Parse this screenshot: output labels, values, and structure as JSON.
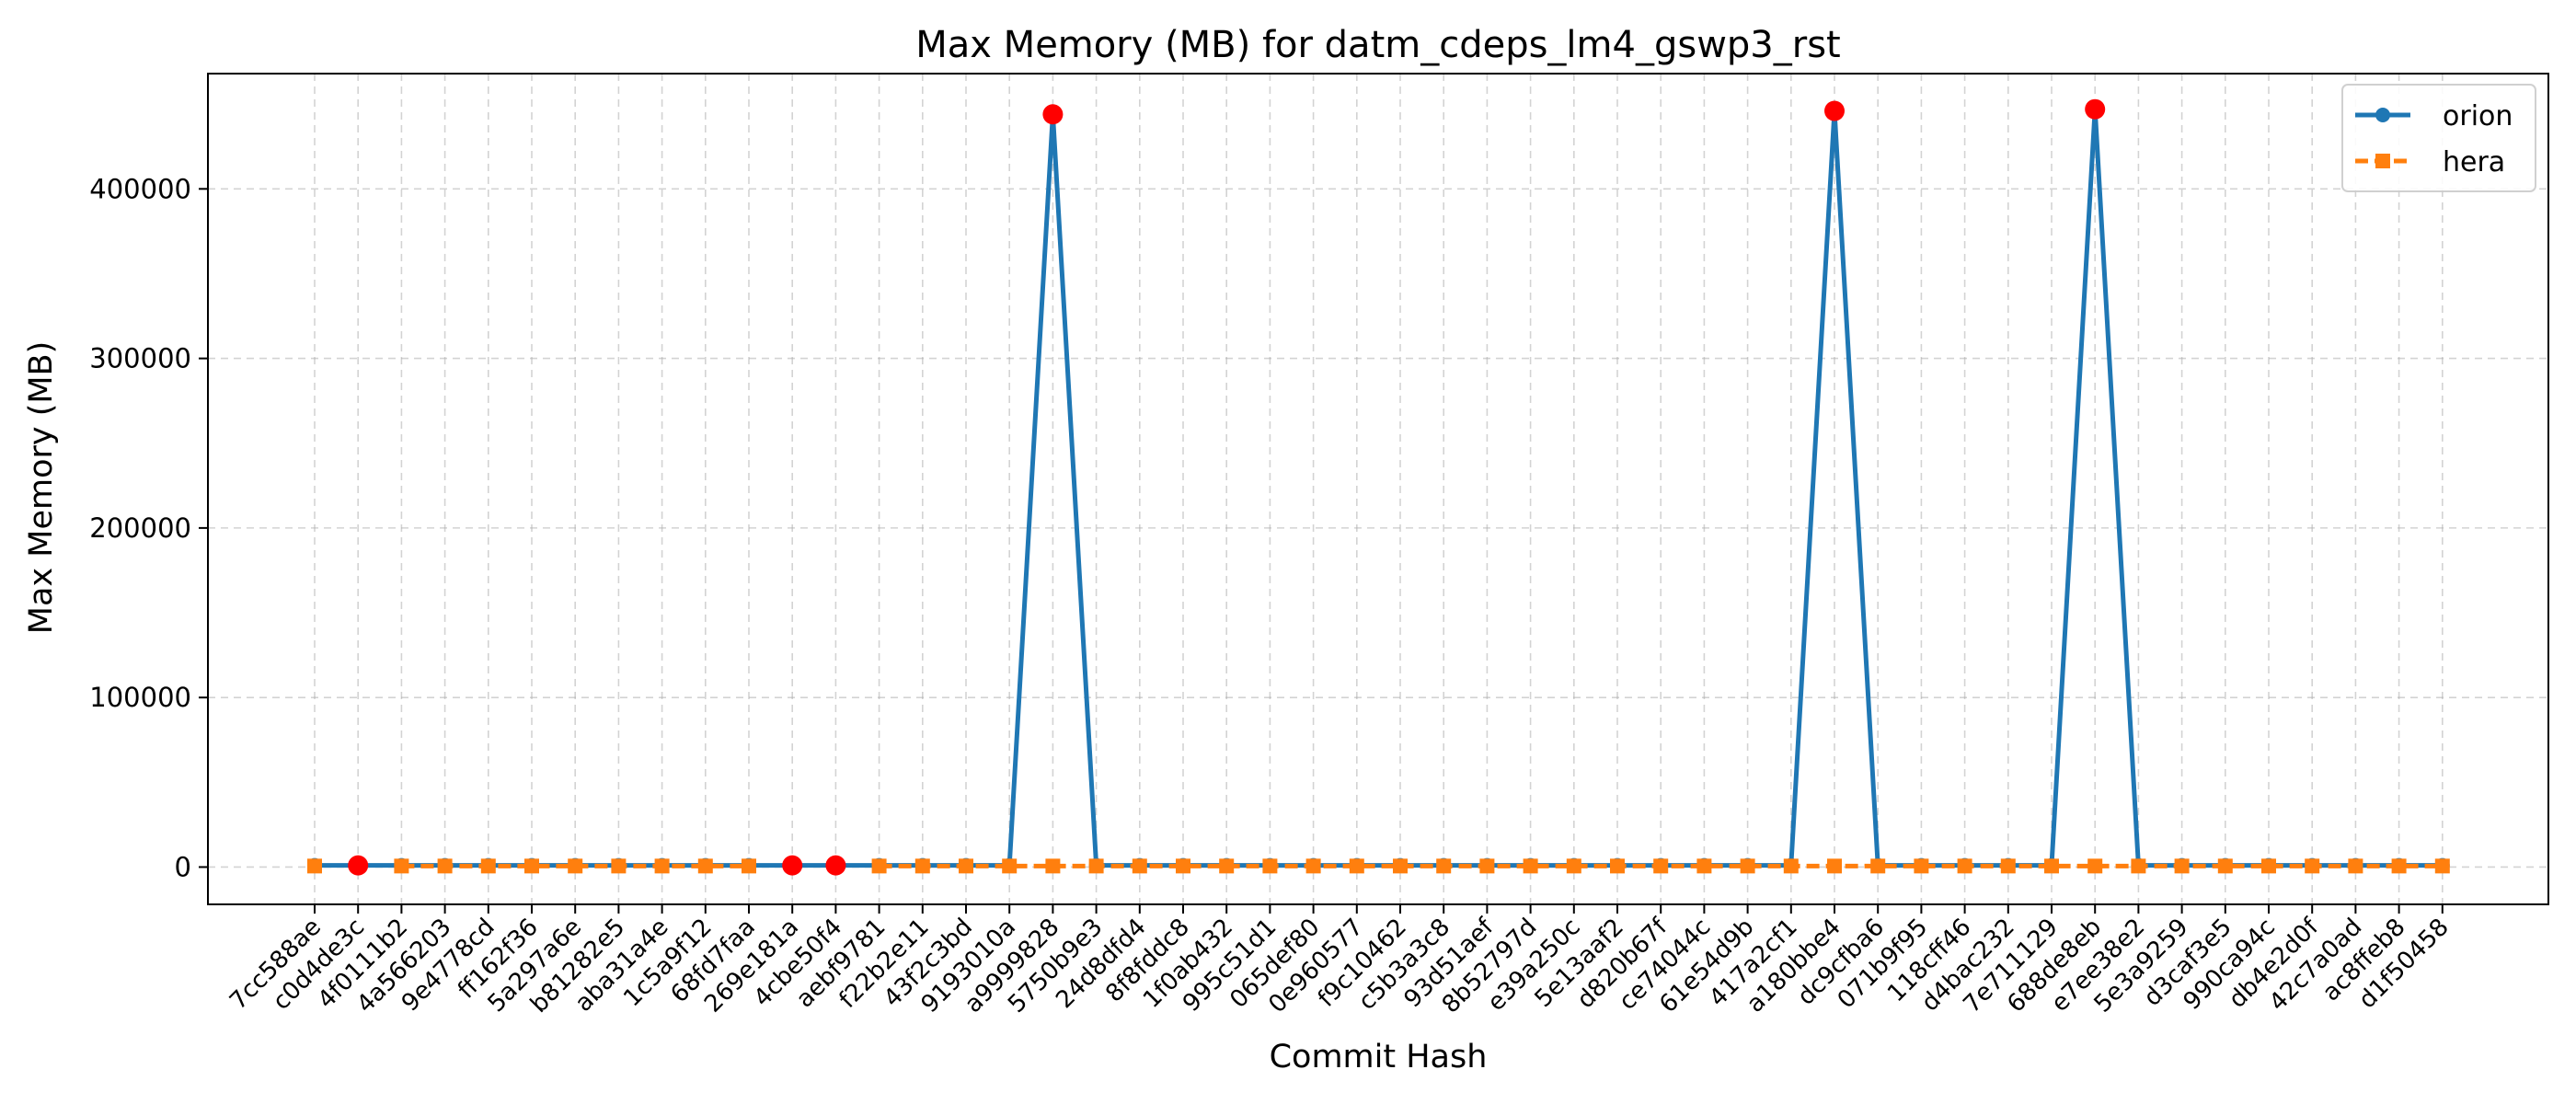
{
  "chart_data": {
    "type": "line",
    "title": "Max Memory (MB) for datm_cdeps_lm4_gswp3_rst",
    "xlabel": "Commit Hash",
    "ylabel": "Max Memory (MB)",
    "ylim": [
      -22000,
      468000
    ],
    "yticks": [
      0,
      100000,
      200000,
      300000,
      400000
    ],
    "ytick_labels": [
      "0",
      "100000",
      "200000",
      "300000",
      "400000"
    ],
    "grid": true,
    "legend_position": "top-right",
    "categories": [
      "7cc588ae",
      "c0d4de3c",
      "4f0111b2",
      "4a566203",
      "9e4778cd",
      "ff162f36",
      "5a297a6e",
      "b81282e5",
      "aba31a4e",
      "1c5a9f12",
      "68fd7faa",
      "269e181a",
      "4cbe50f4",
      "aebf9781",
      "f22b2e11",
      "43f2c3bd",
      "9193010a",
      "a9999828",
      "5750b9e3",
      "24d8dfd4",
      "8f8fddc8",
      "1f0ab432",
      "995c51d1",
      "065def80",
      "0e960577",
      "f9c10462",
      "c5b3a3c8",
      "93d51aef",
      "8b52797d",
      "e39a250c",
      "5e13aaf2",
      "d820b67f",
      "ce74044c",
      "61e54d9b",
      "417a2cf1",
      "a180bbe4",
      "dc9cfba6",
      "071b9f95",
      "118cff46",
      "d4bac232",
      "7e711129",
      "688de8eb",
      "e7ee38e2",
      "5e3a9259",
      "d3caf3e5",
      "990ca94c",
      "db4e2d0f",
      "42c7a0ad",
      "ac8ffeb8",
      "d1f50458"
    ],
    "series": [
      {
        "name": "orion",
        "color": "#1f77b4",
        "marker": "circle",
        "linestyle": "solid",
        "values": [
          1000,
          1000,
          1000,
          1000,
          1000,
          1000,
          1000,
          1000,
          1000,
          1000,
          1000,
          1000,
          1000,
          1000,
          1000,
          1000,
          1000,
          444000,
          1000,
          1000,
          1000,
          1000,
          1000,
          1000,
          1000,
          1000,
          1000,
          1000,
          1000,
          1000,
          1000,
          1000,
          1000,
          1000,
          1000,
          446000,
          1000,
          1000,
          1000,
          1000,
          1000,
          447000,
          1000,
          1000,
          1000,
          1000,
          1000,
          1000,
          1000,
          1000
        ]
      },
      {
        "name": "hera",
        "color": "#ff7f0e",
        "marker": "square",
        "linestyle": "dashed",
        "values": [
          600,
          null,
          600,
          600,
          600,
          600,
          600,
          600,
          600,
          600,
          600,
          null,
          null,
          600,
          600,
          600,
          600,
          600,
          600,
          600,
          600,
          600,
          600,
          600,
          600,
          600,
          600,
          600,
          600,
          600,
          600,
          600,
          600,
          600,
          600,
          600,
          600,
          600,
          600,
          600,
          600,
          600,
          600,
          600,
          600,
          600,
          600,
          600,
          600,
          600
        ]
      }
    ],
    "highlight_color": "#ff0000",
    "highlight_points": [
      {
        "index": 1,
        "value": 1000
      },
      {
        "index": 11,
        "value": 1000
      },
      {
        "index": 12,
        "value": 1000
      },
      {
        "index": 17,
        "value": 444000
      },
      {
        "index": 35,
        "value": 446000
      },
      {
        "index": 41,
        "value": 447000
      }
    ]
  }
}
